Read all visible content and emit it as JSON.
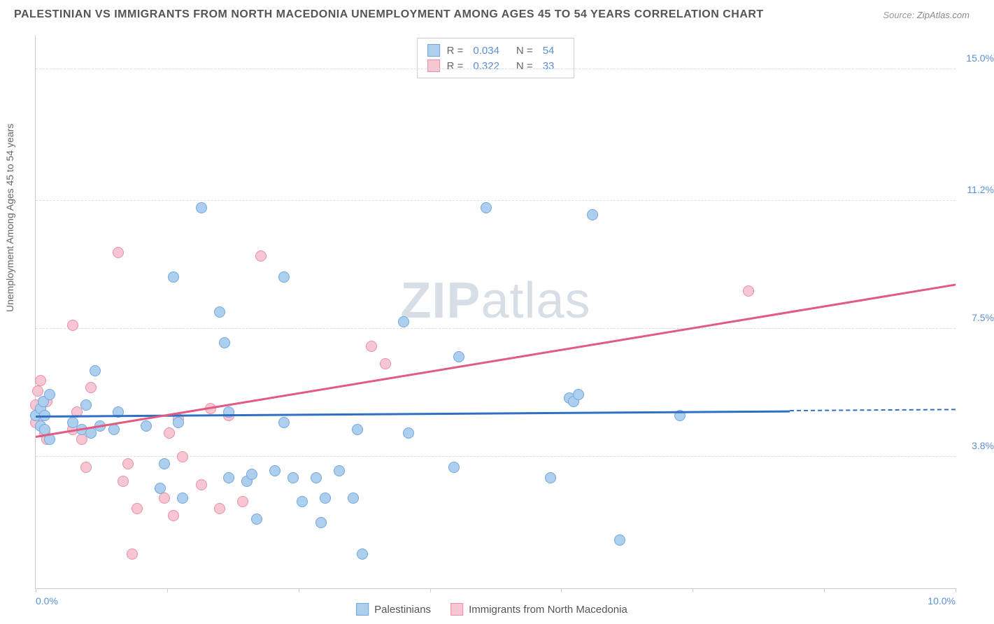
{
  "title": "PALESTINIAN VS IMMIGRANTS FROM NORTH MACEDONIA UNEMPLOYMENT AMONG AGES 45 TO 54 YEARS CORRELATION CHART",
  "source_label": "Source:",
  "source_value": "ZipAtlas.com",
  "y_axis_label": "Unemployment Among Ages 45 to 54 years",
  "watermark_bold": "ZIP",
  "watermark_rest": "atlas",
  "chart": {
    "type": "scatter",
    "xlim": [
      0,
      10
    ],
    "ylim": [
      0,
      16
    ],
    "x_ticks": [
      0,
      1.43,
      2.86,
      4.29,
      5.71,
      7.14,
      8.57,
      10
    ],
    "x_tick_labels_shown": {
      "0": "0.0%",
      "10": "10.0%"
    },
    "y_gridlines": [
      3.8,
      7.5,
      11.2,
      15.0
    ],
    "y_tick_labels": [
      "3.8%",
      "7.5%",
      "11.2%",
      "15.0%"
    ],
    "grid_color": "#dddddd",
    "background_color": "#ffffff",
    "axis_color": "#cccccc",
    "point_radius": 8,
    "point_border_width": 1.5,
    "series": [
      {
        "name": "Palestinians",
        "color_fill": "#aeceee",
        "color_stroke": "#6fa8e0",
        "R": "0.034",
        "N": "54",
        "trend": {
          "x1": 0,
          "y1": 5.0,
          "x2": 8.2,
          "y2": 5.15,
          "color": "#2f6fc4",
          "dash_extend_to": 10
        },
        "points": [
          [
            0.0,
            5.0
          ],
          [
            0.05,
            4.7
          ],
          [
            0.05,
            5.2
          ],
          [
            0.08,
            5.4
          ],
          [
            0.1,
            5.0
          ],
          [
            0.1,
            4.6
          ],
          [
            0.15,
            5.6
          ],
          [
            0.15,
            4.3
          ],
          [
            0.4,
            4.8
          ],
          [
            0.5,
            4.6
          ],
          [
            0.55,
            5.3
          ],
          [
            0.6,
            4.5
          ],
          [
            0.65,
            6.3
          ],
          [
            0.7,
            4.7
          ],
          [
            0.85,
            4.6
          ],
          [
            0.9,
            5.1
          ],
          [
            1.2,
            4.7
          ],
          [
            1.35,
            2.9
          ],
          [
            1.4,
            3.6
          ],
          [
            1.5,
            9.0
          ],
          [
            1.55,
            4.8
          ],
          [
            1.6,
            2.6
          ],
          [
            1.8,
            11.0
          ],
          [
            2.0,
            8.0
          ],
          [
            2.05,
            7.1
          ],
          [
            2.1,
            3.2
          ],
          [
            2.1,
            5.1
          ],
          [
            2.3,
            3.1
          ],
          [
            2.35,
            3.3
          ],
          [
            2.4,
            2.0
          ],
          [
            2.6,
            3.4
          ],
          [
            2.7,
            4.8
          ],
          [
            2.7,
            9.0
          ],
          [
            2.8,
            3.2
          ],
          [
            2.9,
            2.5
          ],
          [
            3.05,
            3.2
          ],
          [
            3.1,
            1.9
          ],
          [
            3.15,
            2.6
          ],
          [
            3.3,
            3.4
          ],
          [
            3.45,
            2.6
          ],
          [
            3.5,
            4.6
          ],
          [
            3.55,
            1.0
          ],
          [
            4.0,
            7.7
          ],
          [
            4.05,
            4.5
          ],
          [
            4.55,
            3.5
          ],
          [
            4.6,
            6.7
          ],
          [
            4.9,
            11.0
          ],
          [
            5.6,
            3.2
          ],
          [
            5.8,
            5.5
          ],
          [
            5.85,
            5.4
          ],
          [
            5.9,
            5.6
          ],
          [
            6.05,
            10.8
          ],
          [
            6.35,
            1.4
          ],
          [
            7.0,
            5.0
          ]
        ]
      },
      {
        "name": "Immigrants from North Macedonia",
        "color_fill": "#f6c6d3",
        "color_stroke": "#e98fa8",
        "R": "0.322",
        "N": "33",
        "trend": {
          "x1": 0,
          "y1": 4.4,
          "x2": 10,
          "y2": 8.8,
          "color": "#e05a82"
        },
        "points": [
          [
            0.0,
            5.3
          ],
          [
            0.0,
            4.8
          ],
          [
            0.02,
            5.7
          ],
          [
            0.05,
            5.0
          ],
          [
            0.05,
            6.0
          ],
          [
            0.1,
            4.5
          ],
          [
            0.12,
            5.4
          ],
          [
            0.12,
            4.3
          ],
          [
            0.4,
            4.6
          ],
          [
            0.4,
            7.6
          ],
          [
            0.45,
            5.1
          ],
          [
            0.5,
            4.3
          ],
          [
            0.55,
            3.5
          ],
          [
            0.6,
            5.8
          ],
          [
            0.9,
            9.7
          ],
          [
            0.95,
            3.1
          ],
          [
            1.0,
            3.6
          ],
          [
            1.05,
            1.0
          ],
          [
            1.1,
            2.3
          ],
          [
            1.4,
            2.6
          ],
          [
            1.45,
            4.5
          ],
          [
            1.5,
            2.1
          ],
          [
            1.55,
            4.9
          ],
          [
            1.6,
            3.8
          ],
          [
            1.8,
            3.0
          ],
          [
            1.9,
            5.2
          ],
          [
            2.0,
            2.3
          ],
          [
            2.1,
            5.0
          ],
          [
            2.25,
            2.5
          ],
          [
            2.45,
            9.6
          ],
          [
            3.65,
            7.0
          ],
          [
            3.8,
            6.5
          ],
          [
            7.75,
            8.6
          ]
        ]
      }
    ]
  },
  "legend_bottom": {
    "series1_label": "Palestinians",
    "series2_label": "Immigrants from North Macedonia"
  },
  "legend_top": {
    "r_label": "R =",
    "n_label": "N ="
  }
}
